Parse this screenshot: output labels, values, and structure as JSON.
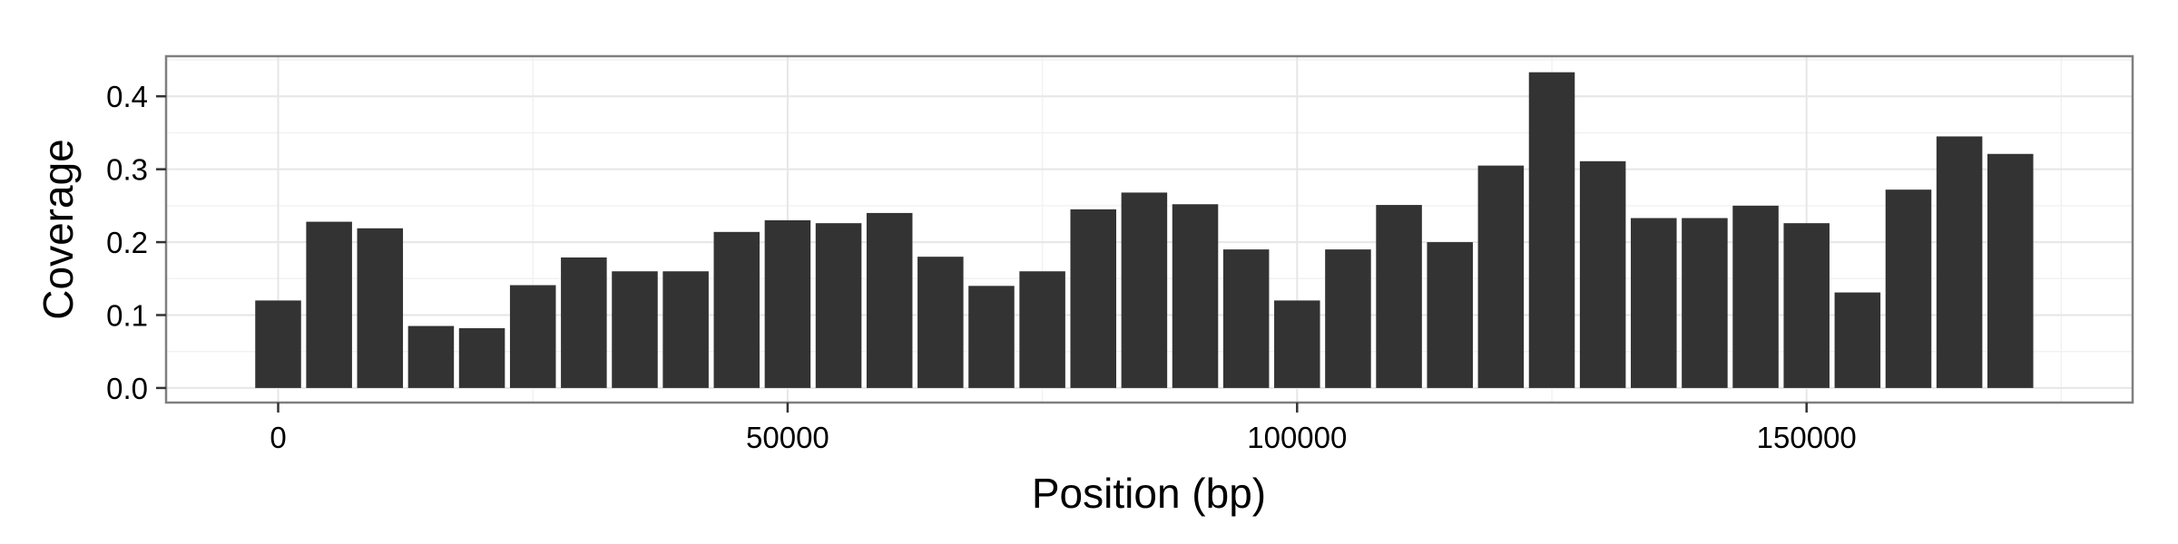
{
  "chart_data": {
    "type": "bar",
    "title": "",
    "xlabel": "Position (bp)",
    "ylabel": "Coverage",
    "xlim": [
      -11000,
      182000
    ],
    "ylim": [
      -0.02,
      0.455
    ],
    "x_ticks": [
      0,
      50000,
      100000,
      150000
    ],
    "x_tick_labels": [
      "0",
      "50000",
      "100000",
      "150000"
    ],
    "y_ticks": [
      0.0,
      0.1,
      0.2,
      0.3,
      0.4
    ],
    "y_tick_labels": [
      "0.0",
      "0.1",
      "0.2",
      "0.3",
      "0.4"
    ],
    "bin_width": 5000,
    "grid": true,
    "legend": "none",
    "bar_color": "#333333",
    "x": [
      0,
      5000,
      10000,
      15000,
      20000,
      25000,
      30000,
      35000,
      40000,
      45000,
      50000,
      55000,
      60000,
      65000,
      70000,
      75000,
      80000,
      85000,
      90000,
      95000,
      100000,
      105000,
      110000,
      115000,
      120000,
      125000,
      130000,
      135000,
      140000,
      145000,
      150000,
      155000,
      160000,
      165000,
      170000
    ],
    "values": [
      0.12,
      0.228,
      0.219,
      0.085,
      0.082,
      0.141,
      0.179,
      0.16,
      0.16,
      0.214,
      0.23,
      0.226,
      0.24,
      0.18,
      0.14,
      0.16,
      0.245,
      0.268,
      0.252,
      0.19,
      0.12,
      0.19,
      0.251,
      0.2,
      0.305,
      0.433,
      0.311,
      0.233,
      0.233,
      0.25,
      0.226,
      0.131,
      0.272,
      0.345,
      0.321
    ]
  }
}
